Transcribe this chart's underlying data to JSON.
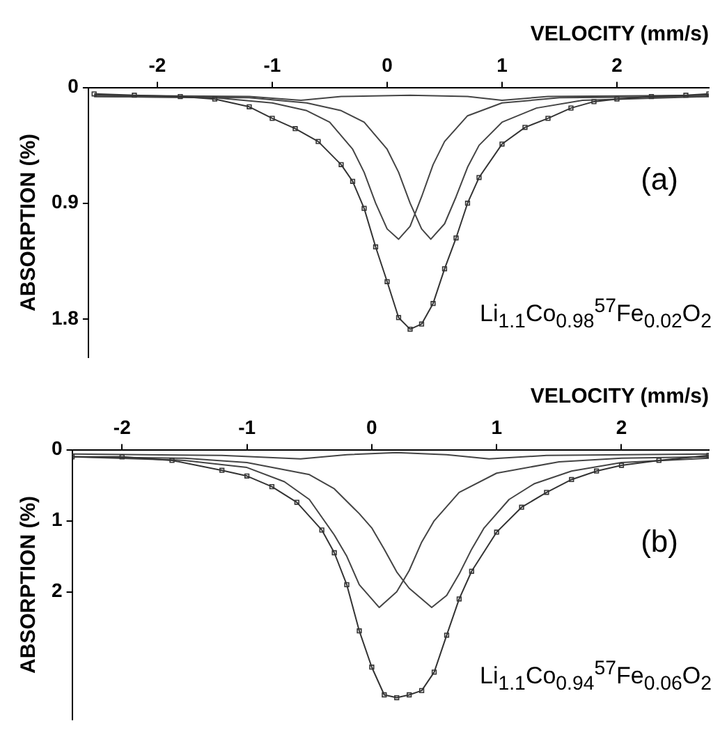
{
  "chart_data": [
    {
      "type": "line",
      "xlabel": "VELOCITY (mm/s)",
      "ylabel": "ABSORPTION (%)",
      "xlim": [
        -2.6,
        2.8
      ],
      "xticks": [
        -2,
        -1,
        0,
        1,
        2
      ],
      "ylim": [
        2.1,
        0
      ],
      "yticks": [
        0,
        0.9,
        1.8
      ],
      "grid": false,
      "legend": false,
      "annotations": [
        "(a)",
        "Li$_{1.1}$Co$_{0.98}$$^{57}$Fe$_{0.02}$O$_{2}$"
      ],
      "series": [
        {
          "marker": "square",
          "color": "#333333",
          "x": [
            -2.55,
            -2.2,
            -1.8,
            -1.5,
            -1.2,
            -1.0,
            -0.8,
            -0.6,
            -0.4,
            -0.3,
            -0.2,
            -0.1,
            0,
            0.1,
            0.2,
            0.3,
            0.4,
            0.5,
            0.6,
            0.7,
            0.8,
            1.0,
            1.2,
            1.4,
            1.6,
            1.8,
            2.0,
            2.3,
            2.6,
            2.8
          ],
          "values": [
            0.05,
            0.06,
            0.07,
            0.09,
            0.15,
            0.24,
            0.32,
            0.42,
            0.6,
            0.73,
            0.94,
            1.24,
            1.51,
            1.79,
            1.88,
            1.84,
            1.68,
            1.41,
            1.17,
            0.9,
            0.7,
            0.44,
            0.31,
            0.24,
            0.16,
            0.11,
            0.09,
            0.07,
            0.06,
            0.05
          ]
        },
        {
          "marker": "none",
          "color": "#444444",
          "x": [
            -2.55,
            -1.5,
            -1.0,
            -0.7,
            -0.5,
            -0.3,
            -0.2,
            -0.1,
            0,
            0.1,
            0.2,
            0.3,
            0.4,
            0.5,
            0.7,
            1.0,
            1.5,
            2.8
          ],
          "values": [
            0.07,
            0.08,
            0.12,
            0.18,
            0.27,
            0.48,
            0.66,
            0.9,
            1.1,
            1.18,
            1.08,
            0.85,
            0.6,
            0.42,
            0.22,
            0.12,
            0.08,
            0.07
          ]
        },
        {
          "marker": "none",
          "color": "#444444",
          "x": [
            -2.55,
            -1.2,
            -0.7,
            -0.4,
            -0.2,
            0,
            0.1,
            0.2,
            0.3,
            0.38,
            0.5,
            0.6,
            0.7,
            0.8,
            1.0,
            1.3,
            1.7,
            2.8
          ],
          "values": [
            0.07,
            0.08,
            0.12,
            0.18,
            0.27,
            0.48,
            0.66,
            0.9,
            1.1,
            1.18,
            1.06,
            0.85,
            0.62,
            0.45,
            0.27,
            0.16,
            0.1,
            0.07
          ]
        },
        {
          "marker": "none",
          "color": "#444444",
          "x": [
            -2.55,
            -1.2,
            -0.75,
            -0.4,
            0.2,
            0.7,
            1.0,
            1.4,
            2.8
          ],
          "values": [
            0.06,
            0.07,
            0.1,
            0.07,
            0.06,
            0.07,
            0.1,
            0.07,
            0.06
          ]
        }
      ]
    },
    {
      "type": "line",
      "xlabel": "VELOCITY (mm/s)",
      "ylabel": "ABSORPTION (%)",
      "xlim": [
        -2.4,
        2.7
      ],
      "xticks": [
        -2,
        -1,
        0,
        1,
        2
      ],
      "ylim": [
        3.8,
        0
      ],
      "yticks": [
        0,
        1,
        2
      ],
      "grid": false,
      "legend": false,
      "annotations": [
        "(b)",
        "Li$_{1.1}$Co$_{0.94}$$^{57}$Fe$_{0.06}$O$_{2}$"
      ],
      "series": [
        {
          "marker": "square",
          "color": "#333333",
          "x": [
            -2.4,
            -2.0,
            -1.6,
            -1.2,
            -1.0,
            -0.8,
            -0.6,
            -0.4,
            -0.3,
            -0.2,
            -0.1,
            0,
            0.1,
            0.2,
            0.3,
            0.4,
            0.5,
            0.6,
            0.7,
            0.8,
            1.0,
            1.2,
            1.4,
            1.6,
            1.8,
            2.0,
            2.3,
            2.7
          ],
          "values": [
            0.1,
            0.1,
            0.15,
            0.29,
            0.37,
            0.52,
            0.74,
            1.13,
            1.45,
            1.9,
            2.55,
            3.06,
            3.45,
            3.49,
            3.45,
            3.39,
            3.13,
            2.61,
            2.1,
            1.71,
            1.16,
            0.81,
            0.6,
            0.42,
            0.3,
            0.22,
            0.15,
            0.08
          ]
        },
        {
          "marker": "none",
          "color": "#444444",
          "x": [
            -2.4,
            -1.5,
            -1.0,
            -0.7,
            -0.5,
            -0.3,
            -0.2,
            -0.1,
            0.06,
            0.2,
            0.3,
            0.4,
            0.5,
            0.7,
            1.0,
            1.5,
            2.0,
            2.7
          ],
          "values": [
            0.1,
            0.15,
            0.25,
            0.45,
            0.7,
            1.2,
            1.5,
            1.9,
            2.22,
            2.0,
            1.7,
            1.3,
            1.0,
            0.6,
            0.33,
            0.17,
            0.12,
            0.1
          ]
        },
        {
          "marker": "none",
          "color": "#444444",
          "x": [
            -2.4,
            -1.5,
            -1.0,
            -0.5,
            -0.3,
            -0.1,
            0,
            0.1,
            0.2,
            0.3,
            0.48,
            0.6,
            0.7,
            0.8,
            0.9,
            1.1,
            1.3,
            1.6,
            2.0,
            2.7
          ],
          "values": [
            0.1,
            0.12,
            0.18,
            0.35,
            0.55,
            0.9,
            1.1,
            1.4,
            1.72,
            1.95,
            2.22,
            2.05,
            1.75,
            1.4,
            1.1,
            0.7,
            0.48,
            0.3,
            0.18,
            0.12
          ]
        },
        {
          "marker": "none",
          "color": "#444444",
          "x": [
            -2.4,
            -1.2,
            -0.57,
            -0.2,
            0.2,
            0.6,
            0.94,
            1.4,
            2.7
          ],
          "values": [
            0.06,
            0.08,
            0.13,
            0.07,
            0.04,
            0.07,
            0.13,
            0.08,
            0.06
          ]
        }
      ]
    }
  ]
}
